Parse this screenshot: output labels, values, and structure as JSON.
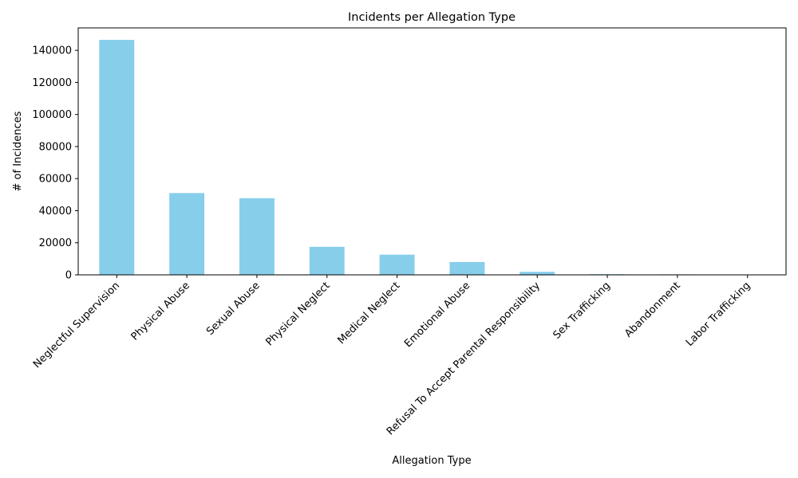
{
  "chart_data": {
    "type": "bar",
    "title": "Incidents per Allegation Type",
    "xlabel": "Allegation Type",
    "ylabel": "# of Incidences",
    "categories": [
      "Neglectful Supervision",
      "Physical Abuse",
      "Sexual Abuse",
      "Physical Neglect",
      "Medical Neglect",
      "Emotional Abuse",
      "Refusal To Accept Parental Responsibility",
      "Sex Trafficking",
      "Abandonment",
      "Labor Trafficking"
    ],
    "values": [
      146500,
      51000,
      47800,
      17500,
      12600,
      8000,
      1900,
      400,
      300,
      100
    ],
    "ylim": [
      0,
      154000
    ],
    "yticks": [
      0,
      20000,
      40000,
      60000,
      80000,
      100000,
      120000,
      140000
    ],
    "bar_color": "#87CEEB",
    "grid": false,
    "legend": "none"
  }
}
